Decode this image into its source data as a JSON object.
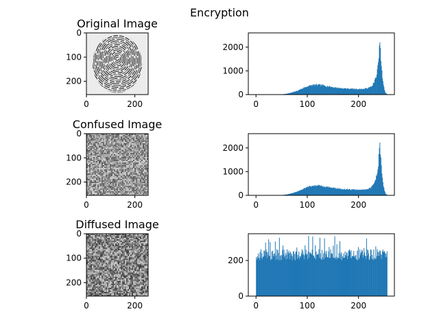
{
  "figure": {
    "suptitle": "Encryption"
  },
  "colors": {
    "bar": "#1f77b4",
    "axis": "#000000",
    "background": "#ffffff"
  },
  "chart_data": [
    {
      "type": "heatmap",
      "title": "Original Image",
      "content": "grayscale fingerprint",
      "xlim": [
        0,
        255
      ],
      "ylim": [
        255,
        0
      ],
      "xticks": [
        0,
        200
      ],
      "yticks": [
        0,
        100,
        200
      ]
    },
    {
      "type": "bar",
      "title": "",
      "xlim": [
        -15,
        270
      ],
      "ylim": [
        0,
        2600
      ],
      "xticks": [
        0,
        100,
        200
      ],
      "yticks": [
        0,
        1000,
        2000
      ],
      "profile": "fingerprint",
      "x": [
        0,
        40,
        50,
        60,
        70,
        80,
        90,
        100,
        110,
        120,
        130,
        140,
        150,
        160,
        170,
        180,
        190,
        200,
        210,
        220,
        225,
        230,
        235,
        238,
        240,
        241,
        242,
        244,
        246,
        248,
        250,
        252,
        255
      ],
      "values": [
        0,
        0,
        10,
        40,
        90,
        160,
        260,
        350,
        400,
        410,
        390,
        350,
        310,
        280,
        260,
        250,
        240,
        230,
        240,
        290,
        350,
        520,
        850,
        1300,
        1900,
        2450,
        1800,
        1200,
        700,
        400,
        200,
        80,
        20
      ]
    },
    {
      "type": "heatmap",
      "title": "Confused Image",
      "content": "uniform grayscale noise (mid-gray)",
      "xlim": [
        0,
        255
      ],
      "ylim": [
        255,
        0
      ],
      "xticks": [
        0,
        200
      ],
      "yticks": [
        0,
        100,
        200
      ]
    },
    {
      "type": "bar",
      "title": "",
      "xlim": [
        -15,
        270
      ],
      "ylim": [
        0,
        2600
      ],
      "xticks": [
        0,
        100,
        200
      ],
      "yticks": [
        0,
        1000,
        2000
      ],
      "profile": "fingerprint",
      "x": [
        0,
        40,
        50,
        60,
        70,
        80,
        90,
        100,
        110,
        120,
        130,
        140,
        150,
        160,
        170,
        180,
        190,
        200,
        210,
        220,
        225,
        230,
        235,
        238,
        240,
        241,
        242,
        244,
        246,
        248,
        250,
        252,
        255
      ],
      "values": [
        0,
        0,
        10,
        40,
        90,
        160,
        260,
        350,
        400,
        410,
        390,
        350,
        310,
        280,
        260,
        250,
        240,
        230,
        240,
        290,
        350,
        520,
        850,
        1300,
        1900,
        2450,
        1800,
        1200,
        700,
        400,
        200,
        80,
        20
      ]
    },
    {
      "type": "heatmap",
      "title": "Diffused Image",
      "content": "uniform grayscale noise (full range)",
      "xlim": [
        0,
        255
      ],
      "ylim": [
        255,
        0
      ],
      "xticks": [
        0,
        200
      ],
      "yticks": [
        0,
        100,
        200
      ]
    },
    {
      "type": "bar",
      "title": "",
      "xlim": [
        -15,
        270
      ],
      "ylim": [
        0,
        350
      ],
      "xticks": [
        0,
        100,
        200
      ],
      "yticks": [
        0,
        200
      ],
      "profile": "uniform",
      "x": [
        0,
        255
      ],
      "values": [
        256,
        256
      ],
      "range": [
        200,
        340
      ]
    }
  ]
}
